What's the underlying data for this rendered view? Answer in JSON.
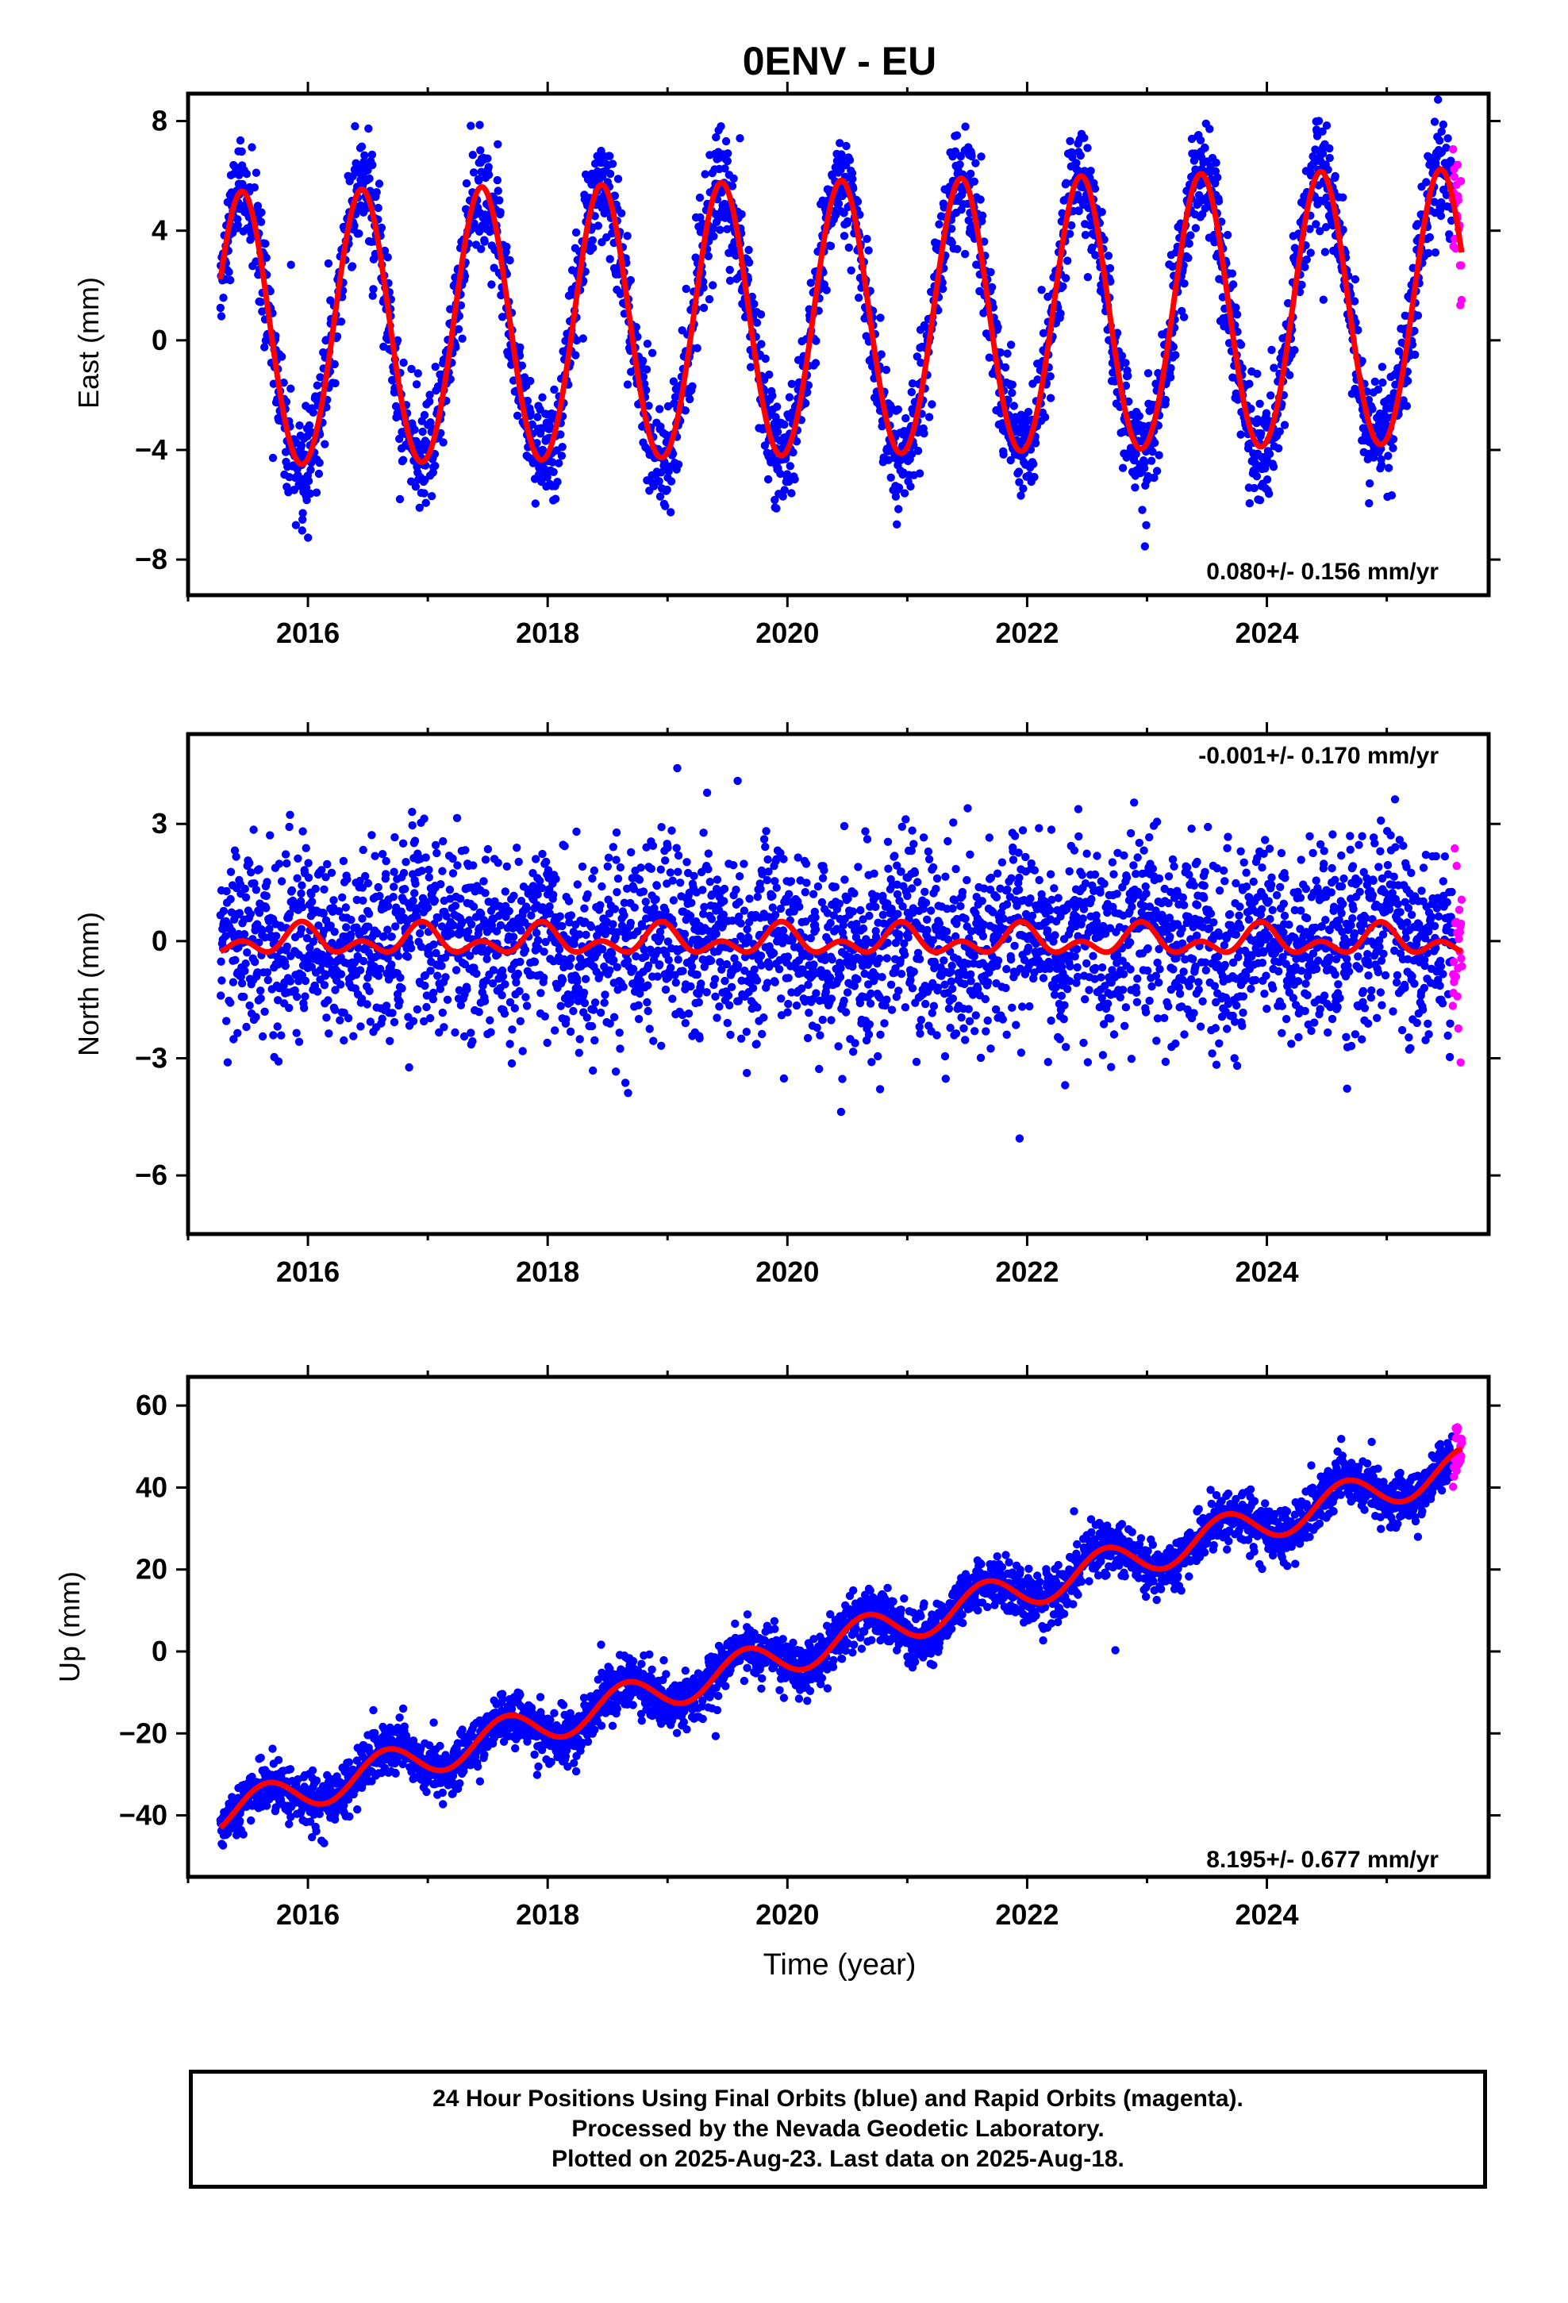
{
  "page_title": "0ENV - EU",
  "colors": {
    "final_orbits": "#0000ff",
    "rapid_orbits": "#ff00ff",
    "model_fit": "#ff0000",
    "frame": "#000000"
  },
  "caption": {
    "line1": "24 Hour Positions Using Final Orbits (blue) and Rapid Orbits (magenta).",
    "line2": "Processed by the Nevada Geodetic Laboratory.",
    "line3": "Plotted on 2025-Aug-23. Last data on 2025-Aug-18."
  },
  "chart_data": [
    {
      "type": "scatter",
      "title": "0ENV - EU",
      "ylabel": "East (mm)",
      "xlabel": "",
      "xlim": [
        2015.0,
        2025.85
      ],
      "ylim": [
        -9.3,
        9.0
      ],
      "x_ticks": [
        2016,
        2018,
        2020,
        2022,
        2024
      ],
      "y_ticks": [
        -8,
        -4,
        0,
        4,
        8
      ],
      "grid": false,
      "rate_label": "0.080+/- 0.156 mm/yr",
      "rate_label_position": "bottom-right",
      "data_start": 2015.27,
      "data_end": 2025.63,
      "rapid_start": 2025.55,
      "series": [
        {
          "values_description_only": false,
          "x": [
            2015.3,
            2015.5,
            2015.9,
            2016.2,
            2016.45,
            2016.9,
            2017.2,
            2017.45,
            2017.9,
            2018.2,
            2018.45,
            2018.9,
            2019.2,
            2019.45,
            2019.9,
            2020.2,
            2020.45,
            2020.9,
            2021.2,
            2021.45,
            2021.9,
            2022.2,
            2022.45,
            2022.9,
            2023.2,
            2023.45,
            2023.9,
            2024.2,
            2024.45,
            2024.9,
            2025.2,
            2025.5,
            2025.6
          ],
          "y": [
            1.8,
            4.8,
            -4.7,
            0.2,
            5.0,
            -4.7,
            0.3,
            5.1,
            -4.6,
            0.4,
            5.2,
            -4.5,
            0.5,
            5.3,
            -4.5,
            0.6,
            5.4,
            -4.4,
            0.7,
            5.5,
            -4.3,
            0.8,
            5.6,
            -4.2,
            0.9,
            5.7,
            -4.2,
            1.0,
            5.7,
            -4.1,
            1.1,
            5.8,
            2.2
          ]
        }
      ],
      "model": {
        "offset": 0.6,
        "rate": 0.08,
        "annual_amp": 5.0,
        "annual_peak": 0.45,
        "semiannual_amp": 0.2,
        "noise": 1.0
      }
    },
    {
      "type": "scatter",
      "title": "",
      "ylabel": "North (mm)",
      "xlabel": "",
      "xlim": [
        2015.0,
        2025.85
      ],
      "ylim": [
        -7.5,
        5.3
      ],
      "x_ticks": [
        2016,
        2018,
        2020,
        2022,
        2024
      ],
      "y_ticks": [
        -6,
        -3,
        0,
        3
      ],
      "grid": false,
      "rate_label": "-0.001+/- 0.170 mm/yr",
      "rate_label_position": "top-right",
      "data_start": 2015.27,
      "data_end": 2025.63,
      "rapid_start": 2025.55,
      "series": [
        {
          "x": [
            2015.3,
            2015.95,
            2016.3,
            2016.95,
            2017.3,
            2017.95,
            2018.3,
            2018.95,
            2019.3,
            2019.95,
            2020.3,
            2020.95,
            2021.3,
            2021.95,
            2022.3,
            2022.95,
            2023.3,
            2023.95,
            2024.3,
            2024.95,
            2025.3,
            2025.6
          ],
          "y": [
            -0.4,
            0.4,
            -0.5,
            0.4,
            -0.5,
            0.4,
            -0.5,
            0.4,
            -0.5,
            0.4,
            -0.5,
            0.4,
            -0.5,
            0.4,
            -0.5,
            0.4,
            -0.5,
            0.4,
            -0.5,
            0.4,
            -0.5,
            -0.2
          ]
        }
      ],
      "model": {
        "offset": 0.0,
        "rate": -0.001,
        "annual_amp": 0.25,
        "annual_peak": 0.95,
        "semiannual_amp": 0.25,
        "noise": 1.2
      }
    },
    {
      "type": "scatter",
      "title": "",
      "ylabel": "Up (mm)",
      "xlabel": "Time (year)",
      "xlim": [
        2015.0,
        2025.85
      ],
      "ylim": [
        -55,
        67
      ],
      "x_ticks": [
        2016,
        2018,
        2020,
        2022,
        2024
      ],
      "y_ticks": [
        -40,
        -20,
        0,
        20,
        40,
        60
      ],
      "grid": false,
      "rate_label": "8.195+/- 0.677 mm/yr",
      "rate_label_position": "bottom-right",
      "data_start": 2015.27,
      "data_end": 2025.63,
      "rapid_start": 2025.55,
      "series": [
        {
          "x": [
            2015.3,
            2015.65,
            2016.05,
            2016.65,
            2017.05,
            2017.65,
            2018.05,
            2018.65,
            2019.05,
            2019.65,
            2020.05,
            2020.65,
            2021.05,
            2021.65,
            2022.05,
            2022.65,
            2023.05,
            2023.65,
            2024.05,
            2024.65,
            2025.05,
            2025.6
          ],
          "y": [
            -45,
            -32,
            -40,
            -24,
            -32,
            -16,
            -24,
            -8,
            -16,
            0,
            -8,
            9,
            1,
            17,
            9,
            25,
            17,
            33,
            25,
            41,
            33,
            49
          ]
        }
      ],
      "model": {
        "offset": -1.0,
        "rate": 8.195,
        "annual_amp": 4.5,
        "annual_peak": 0.65,
        "semiannual_amp": 0.0,
        "noise": 3.2
      }
    }
  ]
}
